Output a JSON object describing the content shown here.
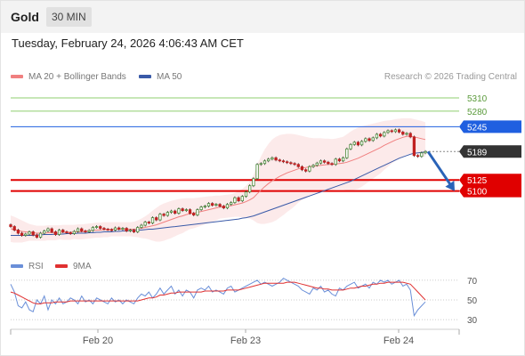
{
  "header": {
    "title": "Gold",
    "timeframe": "30 MIN"
  },
  "timestamp": "Tuesday, February 24, 2026 4:06:43 AM CET",
  "legend": {
    "ma20_bb": "MA 20 + Bollinger Bands",
    "ma50": "MA 50",
    "rsi": "RSI",
    "rsi_ma": "9MA"
  },
  "credit": "Research © 2026 Trading Central",
  "colors": {
    "resistance": "#1f5fe0",
    "support": "#e00000",
    "target_line": "#8fcf6f",
    "last_price": "#333333",
    "ma20": "#f08080",
    "ma50": "#3a5aa8",
    "rsi": "#6a8fd8",
    "rsi_ma": "#e03030",
    "arrow": "#2a63b8",
    "candle_up": "#4a8a3a",
    "candle_down": "#c02020"
  },
  "chart_data": [
    {
      "type": "candlestick",
      "title": "",
      "x_ticks": [
        "Feb 20",
        "Feb 23",
        "Feb 24"
      ],
      "y_range": [
        4985,
        5330
      ],
      "levels": [
        {
          "value": 5310,
          "label": "5310",
          "kind": "target"
        },
        {
          "value": 5280,
          "label": "5280",
          "kind": "target"
        },
        {
          "value": 5245,
          "label": "5245",
          "kind": "resistance"
        },
        {
          "value": 5189,
          "label": "5189",
          "kind": "last"
        },
        {
          "value": 5125,
          "label": "5125",
          "kind": "support"
        },
        {
          "value": 5100,
          "label": "5100",
          "kind": "support"
        }
      ],
      "close": [
        5020,
        5012,
        5005,
        5000,
        5003,
        5008,
        5001,
        4996,
        5005,
        5010,
        5015,
        5008,
        5002,
        5012,
        5008,
        5006,
        5004,
        5009,
        5015,
        5010,
        5008,
        5011,
        5018,
        5020,
        5016,
        5014,
        5013,
        5012,
        5017,
        5014,
        5016,
        5010,
        5012,
        5008,
        5018,
        5023,
        5030,
        5028,
        5040,
        5035,
        5048,
        5045,
        5052,
        5055,
        5050,
        5060,
        5056,
        5058,
        5050,
        5046,
        5058,
        5064,
        5066,
        5072,
        5068,
        5070,
        5066,
        5062,
        5070,
        5074,
        5085,
        5078,
        5088,
        5098,
        5112,
        5128,
        5160,
        5162,
        5168,
        5172,
        5175,
        5170,
        5168,
        5166,
        5164,
        5162,
        5160,
        5155,
        5148,
        5145,
        5155,
        5158,
        5163,
        5168,
        5165,
        5162,
        5160,
        5172,
        5168,
        5175,
        5195,
        5205,
        5210,
        5204,
        5212,
        5218,
        5214,
        5220,
        5228,
        5224,
        5232,
        5236,
        5234,
        5238,
        5233,
        5228,
        5230,
        5222,
        5180,
        5178,
        5186,
        5189
      ],
      "ma20": [
        5015,
        5013,
        5011,
        5009,
        5008,
        5007,
        5006,
        5005,
        5005,
        5005,
        5006,
        5006,
        5006,
        5007,
        5007,
        5007,
        5007,
        5008,
        5008,
        5008,
        5009,
        5010,
        5011,
        5012,
        5012,
        5013,
        5013,
        5014,
        5014,
        5014,
        5014,
        5014,
        5014,
        5014,
        5015,
        5016,
        5018,
        5020,
        5022,
        5024,
        5027,
        5030,
        5033,
        5036,
        5039,
        5042,
        5044,
        5047,
        5049,
        5050,
        5052,
        5054,
        5056,
        5058,
        5060,
        5062,
        5064,
        5065,
        5066,
        5067,
        5069,
        5071,
        5073,
        5076,
        5080,
        5085,
        5094,
        5102,
        5110,
        5117,
        5123,
        5128,
        5133,
        5137,
        5141,
        5144,
        5147,
        5150,
        5152,
        5153,
        5155,
        5156,
        5157,
        5158,
        5159,
        5160,
        5160,
        5161,
        5162,
        5163,
        5165,
        5168,
        5171,
        5174,
        5178,
        5182,
        5186,
        5190,
        5194,
        5198,
        5203,
        5207,
        5211,
        5215,
        5218,
        5221,
        5223,
        5224,
        5222,
        5220,
        5218,
        5216
      ],
      "bb_upper": [
        5045,
        5042,
        5038,
        5034,
        5030,
        5026,
        5024,
        5022,
        5022,
        5022,
        5023,
        5023,
        5023,
        5023,
        5024,
        5024,
        5024,
        5024,
        5025,
        5025,
        5026,
        5027,
        5028,
        5029,
        5029,
        5030,
        5030,
        5030,
        5030,
        5030,
        5030,
        5030,
        5030,
        5031,
        5034,
        5038,
        5043,
        5049,
        5056,
        5062,
        5068,
        5072,
        5075,
        5078,
        5080,
        5082,
        5083,
        5084,
        5084,
        5084,
        5085,
        5086,
        5087,
        5088,
        5089,
        5090,
        5090,
        5091,
        5092,
        5093,
        5096,
        5100,
        5105,
        5112,
        5122,
        5136,
        5160,
        5178,
        5194,
        5206,
        5216,
        5222,
        5226,
        5228,
        5229,
        5229,
        5228,
        5226,
        5224,
        5222,
        5220,
        5219,
        5219,
        5219,
        5218,
        5218,
        5217,
        5218,
        5220,
        5222,
        5228,
        5234,
        5239,
        5243,
        5246,
        5248,
        5250,
        5252,
        5254,
        5256,
        5258,
        5259,
        5260,
        5262,
        5263,
        5264,
        5264,
        5264,
        5262,
        5260,
        5258,
        5255
      ],
      "bb_lower": [
        4985,
        4984,
        4984,
        4984,
        4986,
        4988,
        4988,
        4988,
        4988,
        4988,
        4989,
        4989,
        4989,
        4991,
        4990,
        4990,
        4990,
        4992,
        4991,
        4991,
        4992,
        4993,
        4994,
        4995,
        4995,
        4996,
        4996,
        4998,
        4998,
        4998,
        4998,
        4998,
        4998,
        4997,
        4996,
        4994,
        4993,
        4991,
        4988,
        4986,
        4986,
        4988,
        4991,
        4994,
        4998,
        5002,
        5005,
        5010,
        5014,
        5016,
        5019,
        5022,
        5025,
        5028,
        5031,
        5034,
        5038,
        5039,
        5040,
        5041,
        5042,
        5042,
        5041,
        5040,
        5038,
        5034,
        5028,
        5026,
        5026,
        5028,
        5030,
        5034,
        5040,
        5046,
        5053,
        5059,
        5066,
        5074,
        5080,
        5084,
        5090,
        5093,
        5095,
        5097,
        5100,
        5102,
        5103,
        5104,
        5104,
        5104,
        5102,
        5102,
        5103,
        5105,
        5110,
        5116,
        5122,
        5128,
        5134,
        5140,
        5148,
        5155,
        5162,
        5168,
        5173,
        5178,
        5182,
        5184,
        5182,
        5180,
        5178,
        5177
      ],
      "ma50": [
        5000,
        5000,
        5000,
        5000,
        5000,
        5000,
        5000,
        5001,
        5001,
        5002,
        5002,
        5002,
        5003,
        5003,
        5003,
        5004,
        5004,
        5004,
        5005,
        5005,
        5005,
        5006,
        5006,
        5007,
        5007,
        5008,
        5008,
        5008,
        5009,
        5009,
        5010,
        5010,
        5011,
        5011,
        5012,
        5012,
        5013,
        5014,
        5014,
        5015,
        5016,
        5017,
        5018,
        5019,
        5020,
        5021,
        5022,
        5023,
        5024,
        5025,
        5026,
        5027,
        5028,
        5029,
        5030,
        5031,
        5032,
        5033,
        5034,
        5035,
        5036,
        5037,
        5039,
        5040,
        5042,
        5044,
        5047,
        5050,
        5053,
        5056,
        5059,
        5062,
        5065,
        5068,
        5071,
        5074,
        5077,
        5080,
        5083,
        5086,
        5089,
        5092,
        5095,
        5098,
        5101,
        5104,
        5107,
        5110,
        5113,
        5116,
        5119,
        5122,
        5126,
        5130,
        5134,
        5138,
        5142,
        5146,
        5150,
        5154,
        5158,
        5162,
        5166,
        5170,
        5174,
        5177,
        5180,
        5183,
        5185,
        5186,
        5187,
        5188
      ],
      "projection": {
        "from": 5189,
        "to": 5100
      }
    },
    {
      "type": "line",
      "title": "",
      "y_ticks": [
        70,
        50,
        30
      ],
      "ylim": [
        22,
        78
      ],
      "series": [
        {
          "name": "RSI",
          "values": [
            66,
            58,
            44,
            42,
            48,
            40,
            38,
            50,
            46,
            54,
            40,
            50,
            46,
            52,
            46,
            48,
            52,
            50,
            46,
            54,
            48,
            50,
            46,
            52,
            50,
            48,
            46,
            52,
            48,
            50,
            46,
            50,
            48,
            46,
            52,
            56,
            54,
            58,
            52,
            56,
            62,
            56,
            60,
            64,
            56,
            60,
            54,
            60,
            58,
            52,
            60,
            62,
            60,
            64,
            58,
            60,
            58,
            56,
            62,
            64,
            58,
            60,
            62,
            64,
            66,
            68,
            70,
            66,
            68,
            66,
            64,
            66,
            68,
            72,
            70,
            68,
            66,
            64,
            60,
            58,
            56,
            62,
            60,
            64,
            58,
            60,
            56,
            54,
            62,
            60,
            64,
            66,
            68,
            62,
            64,
            66,
            62,
            68,
            66,
            70,
            68,
            70,
            66,
            68,
            70,
            64,
            66,
            60,
            34,
            40,
            44,
            48
          ]
        },
        {
          "name": "9MA",
          "values": [
            58,
            57,
            55,
            53,
            51,
            49,
            47,
            46,
            46,
            47,
            47,
            47,
            48,
            48,
            48,
            48,
            49,
            49,
            49,
            49,
            49,
            49,
            49,
            49,
            49,
            49,
            49,
            49,
            49,
            49,
            49,
            49,
            49,
            49,
            49,
            50,
            51,
            52,
            52,
            53,
            55,
            55,
            56,
            57,
            57,
            58,
            58,
            58,
            58,
            58,
            58,
            58,
            59,
            59,
            59,
            59,
            59,
            59,
            60,
            60,
            60,
            60,
            61,
            62,
            63,
            64,
            65,
            66,
            67,
            67,
            67,
            67,
            67,
            67,
            68,
            68,
            68,
            67,
            66,
            65,
            64,
            63,
            62,
            62,
            61,
            61,
            60,
            60,
            60,
            60,
            61,
            62,
            62,
            63,
            64,
            64,
            65,
            66,
            66,
            67,
            67,
            68,
            68,
            68,
            68,
            68,
            67,
            66,
            62,
            58,
            54,
            50
          ]
        }
      ]
    }
  ]
}
